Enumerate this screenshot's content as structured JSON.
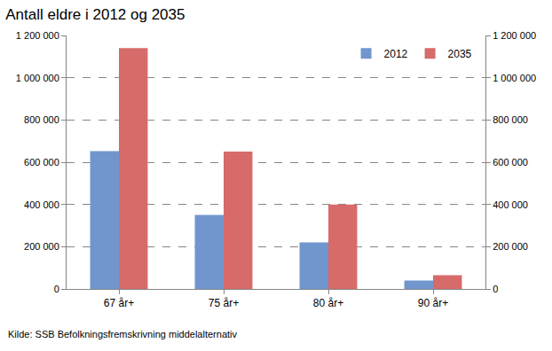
{
  "chart_data": {
    "type": "bar",
    "title": "Antall eldre i 2012 og 2035",
    "categories": [
      "67 år+",
      "75 år+",
      "80 år+",
      "90 år+"
    ],
    "series": [
      {
        "name": "2012",
        "color": "#7196ce",
        "values": [
          652000,
          350000,
          220000,
          40000
        ]
      },
      {
        "name": "2035",
        "color": "#d66b6a",
        "values": [
          1140000,
          650000,
          400000,
          65000
        ]
      }
    ],
    "ylim": [
      0,
      1200000
    ],
    "yticks": [
      0,
      {
        "value": 200000,
        "label": "200 000"
      },
      {
        "value": 400000,
        "label": "400 000"
      },
      {
        "value": 600000,
        "label": "600 000"
      },
      {
        "value": 800000,
        "label": "800 000"
      },
      {
        "value": 1000000,
        "label": "1 000 000"
      },
      {
        "value": 1200000,
        "label": "1 200 000"
      }
    ],
    "y2lim": [
      0,
      1200000
    ],
    "y2ticks": [
      0,
      {
        "value": 200000,
        "label": "200 000"
      },
      {
        "value": 400000,
        "label": "400 000"
      },
      {
        "value": 600000,
        "label": "600 000"
      },
      {
        "value": 800000,
        "label": "800 000"
      },
      {
        "value": 1000000,
        "label": "1 000 000"
      },
      {
        "value": 1200000,
        "label": "1 200 000"
      }
    ],
    "grid": true,
    "legend": "upper right",
    "annotations": [
      {
        "text": "Kilde: SSB Befolkningsfremskrivning middelalternativ"
      }
    ]
  }
}
